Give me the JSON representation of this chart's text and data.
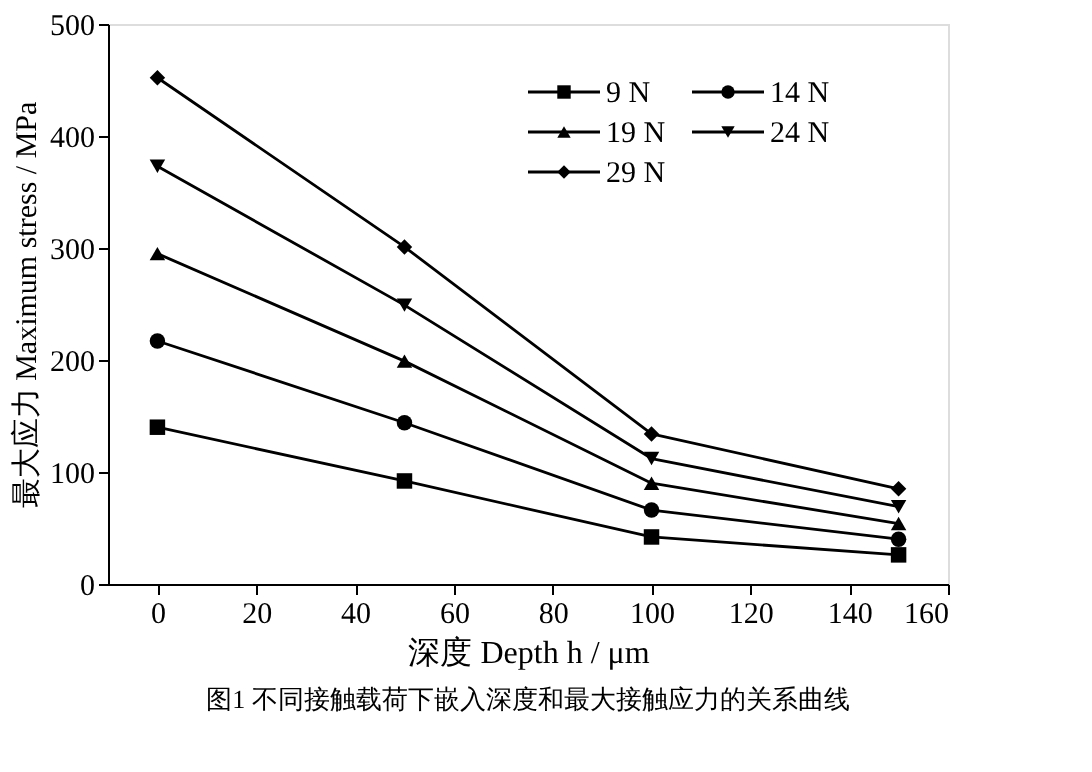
{
  "chart_data": {
    "type": "line",
    "xlabel": "深度 Depth h / μm",
    "ylabel": "最大应力 Maximum stress / MPa",
    "x": [
      0,
      50,
      100,
      150
    ],
    "series": [
      {
        "name": "9 N",
        "color": "#000000",
        "marker": "square",
        "values": [
          140,
          92,
          42,
          26
        ]
      },
      {
        "name": "14 N",
        "color": "#000000",
        "marker": "circle",
        "values": [
          217,
          144,
          66,
          40
        ]
      },
      {
        "name": "19 N",
        "color": "#000000",
        "marker": "triangle",
        "values": [
          295,
          199,
          90,
          54
        ]
      },
      {
        "name": "24 N",
        "color": "#000000",
        "marker": "triangle-down",
        "values": [
          373,
          249,
          112,
          69
        ]
      },
      {
        "name": "29 N",
        "color": "#000000",
        "marker": "diamond",
        "values": [
          452,
          301,
          134,
          85
        ]
      }
    ],
    "xlim": [
      -10,
      160
    ],
    "xticks": [
      0,
      20,
      40,
      60,
      80,
      100,
      120,
      140,
      160
    ],
    "ylim": [
      0,
      500
    ],
    "yticks": [
      0,
      100,
      200,
      300,
      400,
      500
    ],
    "grid": false,
    "legend": "top right",
    "line_style": "solid",
    "annotations": [
      "图1  不同接触载荷下嵌入深度和最大接触应力的关系曲线"
    ]
  }
}
